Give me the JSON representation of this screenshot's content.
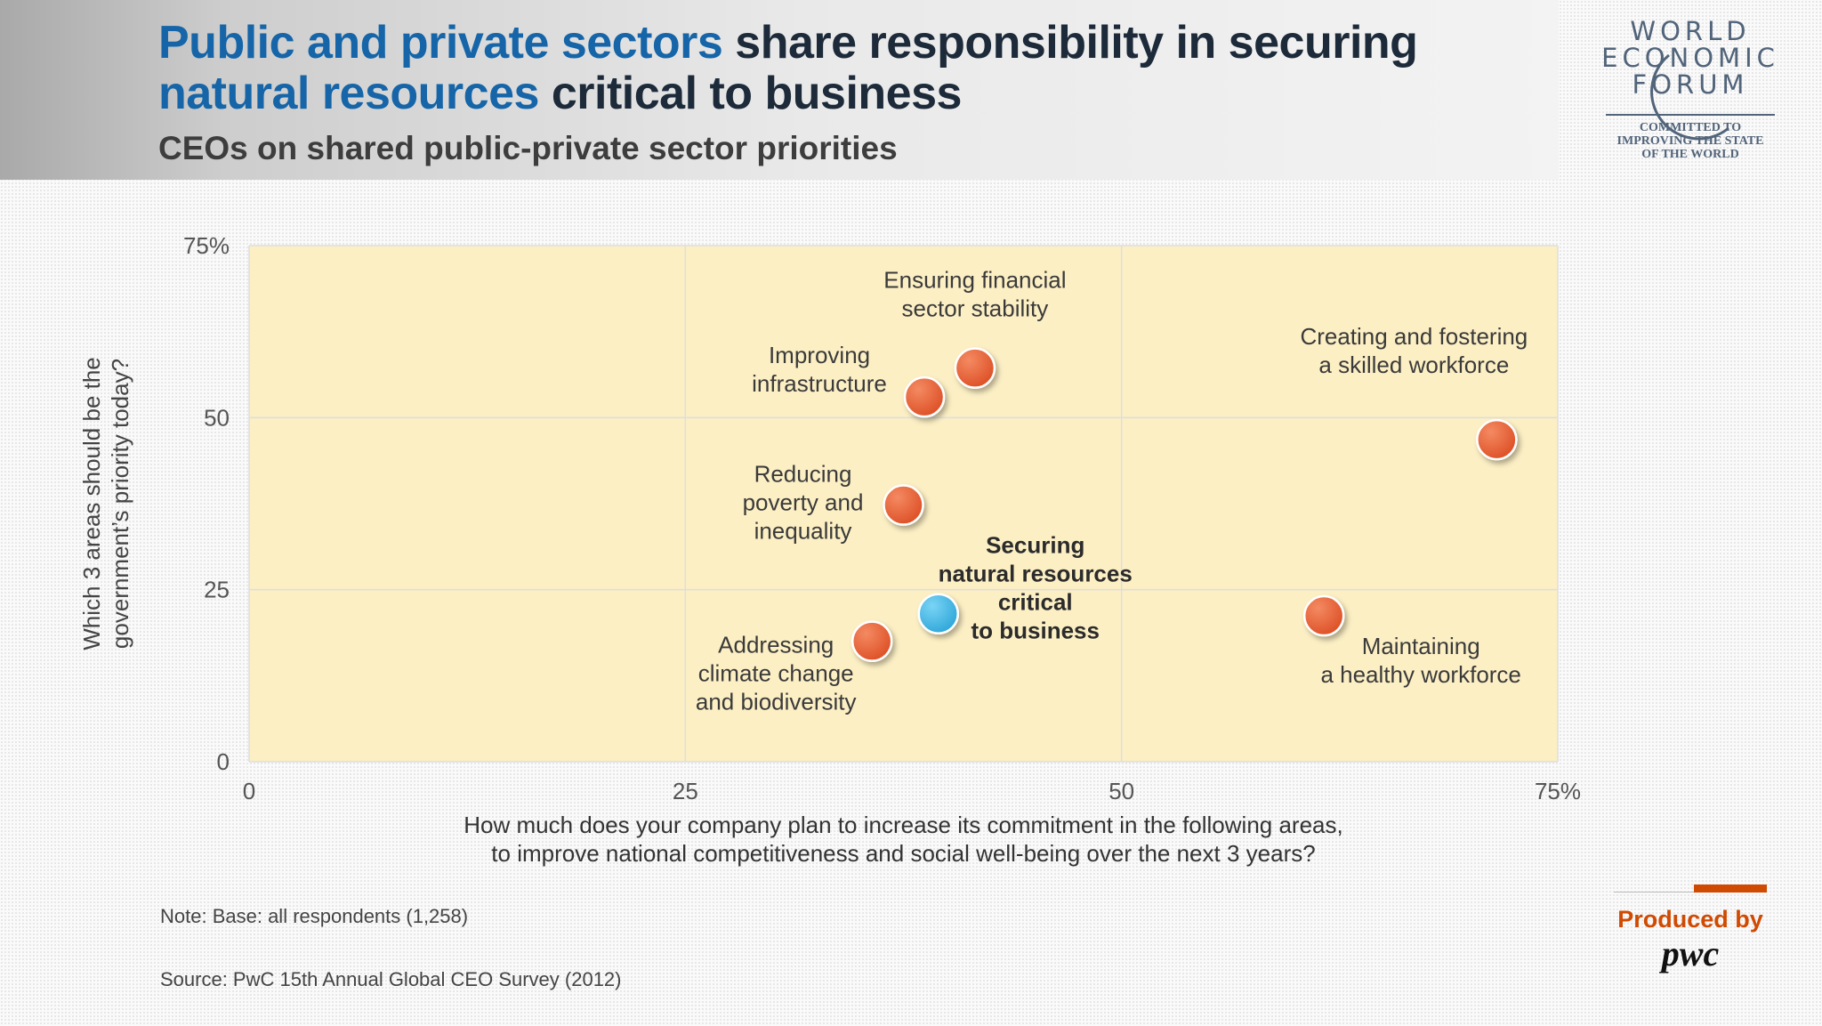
{
  "header": {
    "title_part1": "Public and private sectors",
    "title_part2": " share responsibility in securing ",
    "title_part3": "natural resources",
    "title_part4": " critical to business",
    "subtitle": "CEOs on shared public-private sector priorities"
  },
  "logo": {
    "line1": "WORLD",
    "line2": "ECONOMIC",
    "line3": "FORUM",
    "tagline1": "COMMITTED TO",
    "tagline2": "IMPROVING THE STATE",
    "tagline3": "OF THE WORLD"
  },
  "footer": {
    "note": "Note: Base: all respondents (1,258)",
    "source": "Source: PwC 15th Annual Global CEO Survey (2012)",
    "produced_by": "Produced by",
    "producer": "pwc"
  },
  "colors": {
    "plot_bg": "#fcefc4",
    "point_default": "#e0552d",
    "point_highlight": "#38b3e3",
    "title_accent": "#1565a8",
    "title_dark": "#1c2a3a",
    "pwc_orange": "#d04a02"
  },
  "chart_data": {
    "type": "scatter",
    "xlim": [
      0,
      75
    ],
    "ylim": [
      0,
      75
    ],
    "x_ticks": [
      "0",
      "25",
      "50",
      "75%"
    ],
    "y_ticks": [
      "0",
      "25",
      "50",
      "75%"
    ],
    "xlabel_lines": [
      "How much does your company plan to increase its commitment in the following areas,",
      "to improve national competitiveness and social well-being over the next 3 years?"
    ],
    "ylabel_lines": [
      "Which 3 areas should be the",
      "government’s priority today?"
    ],
    "grid": true,
    "points": [
      {
        "label_lines": [
          "Ensuring financial",
          "sector stability"
        ],
        "x": 41.6,
        "y": 57.2,
        "highlight": false,
        "label_pos": "above"
      },
      {
        "label_lines": [
          "Improving",
          "infrastructure"
        ],
        "x": 38.7,
        "y": 53.0,
        "highlight": false,
        "label_pos": "left-upper"
      },
      {
        "label_lines": [
          "Creating and fostering",
          "a skilled workforce"
        ],
        "x": 71.5,
        "y": 46.8,
        "highlight": false,
        "label_pos": "above-left"
      },
      {
        "label_lines": [
          "Reducing",
          "poverty and",
          "inequality"
        ],
        "x": 37.5,
        "y": 37.3,
        "highlight": false,
        "label_pos": "left"
      },
      {
        "label_lines": [
          "Securing",
          "natural resources",
          "critical",
          "to business"
        ],
        "x": 39.5,
        "y": 21.5,
        "highlight": true,
        "label_pos": "right-upper"
      },
      {
        "label_lines": [
          "Addressing",
          "climate change",
          "and biodiversity"
        ],
        "x": 35.7,
        "y": 17.5,
        "highlight": false,
        "label_pos": "below-left"
      },
      {
        "label_lines": [
          "Maintaining",
          "a healthy workforce"
        ],
        "x": 61.6,
        "y": 21.2,
        "highlight": false,
        "label_pos": "below-right"
      }
    ]
  }
}
